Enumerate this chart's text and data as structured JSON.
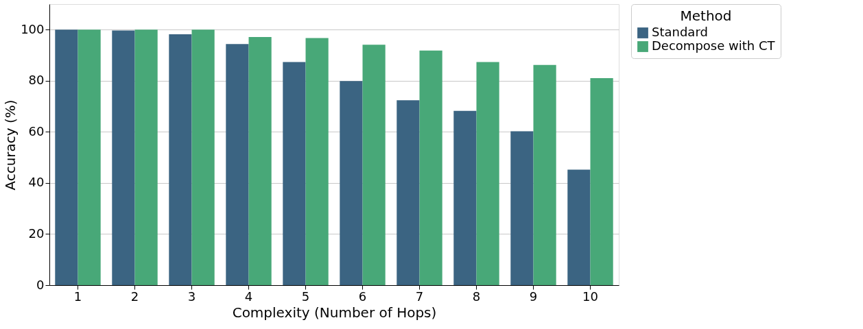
{
  "chart_data": {
    "type": "bar",
    "xlabel": "Complexity (Number of Hops)",
    "ylabel": "Accuracy (%)",
    "legend_title": "Method",
    "categories": [
      "1",
      "2",
      "3",
      "4",
      "5",
      "6",
      "7",
      "8",
      "9",
      "10"
    ],
    "series": [
      {
        "name": "Standard",
        "color": "#3b6482",
        "values": [
          100,
          99.7,
          98.2,
          94.4,
          87.3,
          79.9,
          72.4,
          68.2,
          60.2,
          45.2
        ]
      },
      {
        "name": "Decompose with CT",
        "color": "#48a878",
        "values": [
          100,
          100,
          100,
          97.1,
          96.7,
          94.1,
          91.8,
          87.3,
          86.2,
          81.0
        ]
      }
    ],
    "ylim": [
      0,
      110
    ],
    "yticks": [
      0,
      20,
      40,
      60,
      80,
      100
    ],
    "grid": "y",
    "legend": "top right"
  }
}
